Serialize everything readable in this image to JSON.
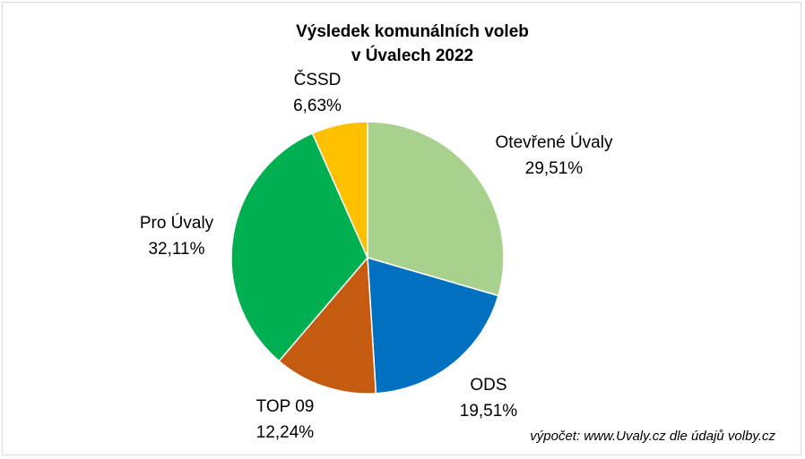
{
  "chart_data": {
    "type": "pie",
    "title": [
      "Výsledek komunálních voleb",
      "v Úvalech 2022"
    ],
    "slices": [
      {
        "name": "Otevřené Úvaly",
        "value": 29.51,
        "label": "29,51%",
        "color": "#a9d18e"
      },
      {
        "name": "ODS",
        "value": 19.51,
        "label": "19,51%",
        "color": "#0070c0"
      },
      {
        "name": "TOP 09",
        "value": 12.24,
        "label": "12,24%",
        "color": "#c55a11"
      },
      {
        "name": "Pro Úvaly",
        "value": 32.11,
        "label": "32,11%",
        "color": "#00b050"
      },
      {
        "name": "ČSSD",
        "value": 6.63,
        "label": "6,63%",
        "color": "#ffc000"
      }
    ],
    "start_angle_deg": 0,
    "direction": "clockwise",
    "source_note": "výpočet: www.Uvaly.cz dle údajů volby.cz"
  }
}
